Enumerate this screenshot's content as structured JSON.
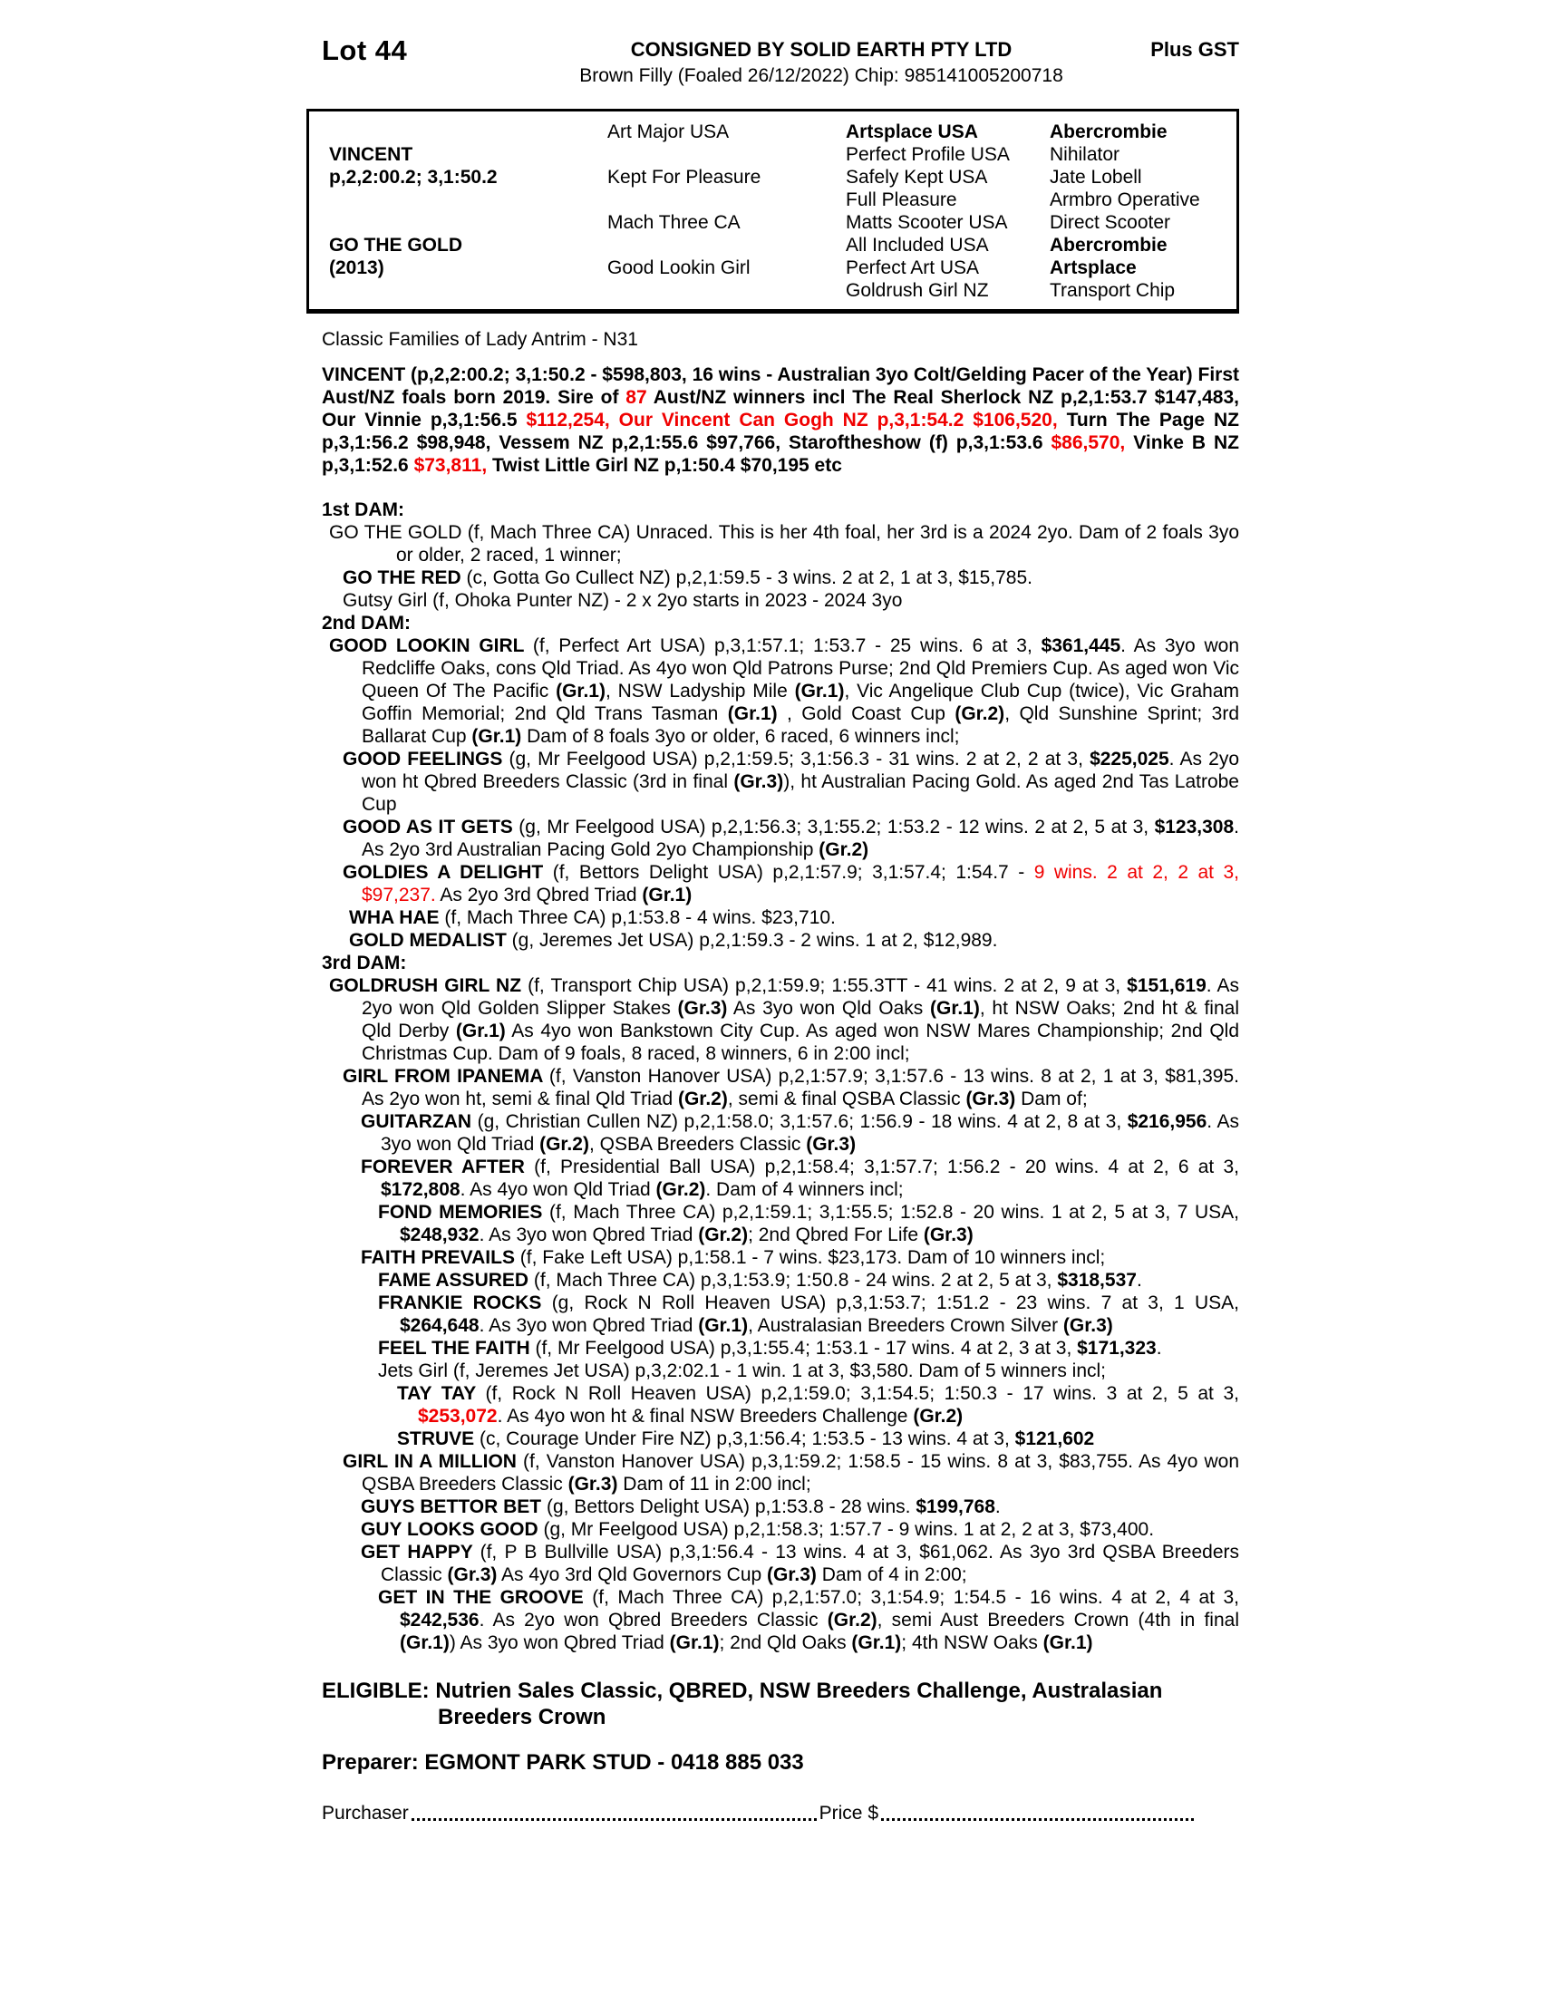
{
  "colors": {
    "red": "#f00000",
    "text": "#000000",
    "background": "#ffffff"
  },
  "header": {
    "lot": "Lot 44",
    "consignor": "CONSIGNED BY SOLID EARTH PTY LTD",
    "gst": "Plus GST",
    "description": "Brown Filly (Foaled 26/12/2022) Chip: 985141005200718"
  },
  "pedigree": {
    "col1": [
      {
        "text": "VINCENT",
        "bold": true,
        "row": 2
      },
      {
        "text": "p,2,2:00.2; 3,1:50.2",
        "bold": true,
        "row": 3
      },
      {
        "text": "GO THE GOLD",
        "bold": true,
        "row": 6
      },
      {
        "text": "(2013)",
        "bold": true,
        "row": 7
      }
    ],
    "col2": [
      {
        "text": "Art Major USA",
        "row": 1
      },
      {
        "text": "Kept For Pleasure",
        "row": 3
      },
      {
        "text": "Mach Three CA",
        "row": 5
      },
      {
        "text": "Good Lookin Girl",
        "row": 7
      }
    ],
    "col3": [
      {
        "text": "Artsplace USA",
        "bold": true,
        "row": 1
      },
      {
        "text": "Perfect Profile USA",
        "row": 2
      },
      {
        "text": "Safely Kept USA",
        "row": 3
      },
      {
        "text": "Full Pleasure",
        "row": 4
      },
      {
        "text": "Matts Scooter USA",
        "row": 5
      },
      {
        "text": "All Included USA",
        "row": 6
      },
      {
        "text": "Perfect Art USA",
        "row": 7
      },
      {
        "text": "Goldrush Girl NZ",
        "row": 8
      }
    ],
    "col4": [
      {
        "text": "Abercrombie",
        "bold": true,
        "row": 1
      },
      {
        "text": "Nihilator",
        "row": 2
      },
      {
        "text": "Jate Lobell",
        "row": 3
      },
      {
        "text": "Armbro Operative",
        "row": 4
      },
      {
        "text": "Direct Scooter",
        "row": 5
      },
      {
        "text": "Abercrombie",
        "bold": true,
        "row": 6
      },
      {
        "text": "Artsplace",
        "bold": true,
        "row": 7
      },
      {
        "text": "Transport Chip",
        "row": 8
      }
    ]
  },
  "family_note": "Classic Families of Lady Antrim - N31",
  "sire_paragraph": {
    "segments": [
      {
        "t": "VINCENT (p,2,2:00.2; 3,1:50.2 - $598,803, 16 wins - Australian 3yo Colt/Gelding Pacer of the Year) First Aust/NZ foals born 2019. Sire of ",
        "b": true
      },
      {
        "t": "87",
        "b": true,
        "r": true
      },
      {
        "t": " Aust/NZ winners incl The Real Sherlock NZ p,2,1:53.7 $147,483, Our Vinnie p,3,1:56.5 ",
        "b": true
      },
      {
        "t": "$112,254,",
        "b": true,
        "r": true
      },
      {
        "t": " ",
        "b": true
      },
      {
        "t": "Our Vincent Can Gogh NZ p,3,1:54.2 $106,520,",
        "b": true,
        "r": true
      },
      {
        "t": " Turn The Page NZ p,3,1:56.2 $98,948, Vessem NZ p,2,1:55.6 $97,766, Staroftheshow (f) p,3,1:53.6 ",
        "b": true
      },
      {
        "t": "$86,570,",
        "b": true,
        "r": true
      },
      {
        "t": " Vinke B NZ p,3,1:52.6 ",
        "b": true
      },
      {
        "t": "$73,811,",
        "b": true,
        "r": true
      },
      {
        "t": " Twist Little Girl NZ p,1:50.4 $70,195 etc",
        "b": true
      }
    ]
  },
  "sections": [
    {
      "heading": "1st DAM:",
      "entries": [
        {
          "level": "lv1",
          "segments": [
            {
              "t": "GO THE GOLD (f, Mach Three CA) Unraced. This is her 4th foal, her 3rd is a 2024 2yo. Dam of 2 foals 3yo or older, 2 raced, 1 winner;"
            }
          ]
        },
        {
          "level": "lv2",
          "segments": [
            {
              "t": "GO THE RED ",
              "b": true
            },
            {
              "t": "(c, Gotta Go Cullect NZ) p,2,1:59.5 - 3 wins. 2 at 2, 1 at 3, $15,785."
            }
          ]
        },
        {
          "level": "lv2",
          "segments": [
            {
              "t": "Gutsy Girl (f, Ohoka Punter NZ) - 2 x 2yo starts in 2023 - 2024 3yo"
            }
          ]
        }
      ]
    },
    {
      "heading": "2nd DAM:",
      "entries": [
        {
          "level": "lv1b",
          "segments": [
            {
              "t": "GOOD LOOKIN GIRL ",
              "b": true
            },
            {
              "t": "(f, Perfect Art USA) p,3,1:57.1; 1:53.7 - 25 wins. 6 at 3, "
            },
            {
              "t": "$361,445",
              "b": true
            },
            {
              "t": ". As 3yo won Redcliffe Oaks, cons Qld Triad. As 4yo won Qld Patrons Purse; 2nd Qld Premiers Cup. As aged won Vic Queen Of The Pacific "
            },
            {
              "t": "(Gr.1)",
              "b": true
            },
            {
              "t": ", NSW Ladyship Mile "
            },
            {
              "t": "(Gr.1)",
              "b": true
            },
            {
              "t": ", Vic Angelique Club Cup (twice), Vic Graham Goffin Memorial; 2nd Qld Trans Tasman "
            },
            {
              "t": "(Gr.1)",
              "b": true
            },
            {
              "t": " , Gold Coast Cup "
            },
            {
              "t": "(Gr.2)",
              "b": true
            },
            {
              "t": ", Qld Sunshine Sprint; 3rd Ballarat Cup "
            },
            {
              "t": "(Gr.1)",
              "b": true
            },
            {
              "t": " Dam of 8 foals 3yo or older, 6 raced, 6 winners incl;"
            }
          ]
        },
        {
          "level": "lv2",
          "segments": [
            {
              "t": "GOOD FEELINGS ",
              "b": true
            },
            {
              "t": "(g, Mr Feelgood USA) p,2,1:59.5; 3,1:56.3 - 31 wins. 2 at 2, 2 at 3, "
            },
            {
              "t": "$225,025",
              "b": true
            },
            {
              "t": ". As 2yo won ht Qbred Breeders Classic (3rd in final "
            },
            {
              "t": "(Gr.3)",
              "b": true
            },
            {
              "t": "), ht Australian Pacing Gold. As aged 2nd Tas Latrobe Cup"
            }
          ]
        },
        {
          "level": "lv2",
          "segments": [
            {
              "t": "GOOD AS IT GETS ",
              "b": true
            },
            {
              "t": "(g, Mr Feelgood USA) p,2,1:56.3; 3,1:55.2; 1:53.2 - 12 wins. 2 at 2, 5 at 3, "
            },
            {
              "t": "$123,308",
              "b": true
            },
            {
              "t": ". As 2yo 3rd Australian Pacing Gold 2yo Championship "
            },
            {
              "t": "(Gr.2)",
              "b": true
            }
          ]
        },
        {
          "level": "lv2",
          "segments": [
            {
              "t": "GOLDIES A DELIGHT ",
              "b": true
            },
            {
              "t": "(f, Bettors Delight USA) p,2,1:57.9; 3,1:57.4; 1:54.7 - "
            },
            {
              "t": "9 wins. 2 at 2, 2 at 3, $97,237.",
              "r": true
            },
            {
              "t": " As 2yo 3rd Qbred Triad "
            },
            {
              "t": "(Gr.1)",
              "b": true
            }
          ]
        },
        {
          "level": "lv2b",
          "segments": [
            {
              "t": "WHA HAE ",
              "b": true
            },
            {
              "t": "(f, Mach Three CA) p,1:53.8 - 4 wins. $23,710."
            }
          ]
        },
        {
          "level": "lv2b",
          "segments": [
            {
              "t": "GOLD MEDALIST ",
              "b": true
            },
            {
              "t": "(g, Jeremes Jet USA) p,2,1:59.3 - 2 wins. 1 at 2, $12,989."
            }
          ]
        }
      ]
    },
    {
      "heading": "3rd DAM:",
      "entries": [
        {
          "level": "lv1b",
          "segments": [
            {
              "t": "GOLDRUSH GIRL NZ ",
              "b": true
            },
            {
              "t": "(f, Transport Chip USA) p,2,1:59.9; 1:55.3TT - 41 wins. 2 at 2, 9 at 3, "
            },
            {
              "t": "$151,619",
              "b": true
            },
            {
              "t": ". As 2yo won Qld Golden Slipper Stakes "
            },
            {
              "t": "(Gr.3)",
              "b": true
            },
            {
              "t": " As 3yo won Qld Oaks "
            },
            {
              "t": "(Gr.1)",
              "b": true
            },
            {
              "t": ", ht NSW Oaks; 2nd ht & final Qld Derby "
            },
            {
              "t": "(Gr.1)",
              "b": true
            },
            {
              "t": " As 4yo won Bankstown City Cup. As aged won NSW Mares Championship; 2nd Qld Christmas Cup. Dam of 9 foals, 8 raced, 8 winners, 6 in 2:00 incl;"
            }
          ]
        },
        {
          "level": "lv2",
          "segments": [
            {
              "t": "GIRL FROM IPANEMA ",
              "b": true
            },
            {
              "t": "(f, Vanston Hanover USA) p,2,1:57.9; 3,1:57.6 - 13 wins. 8 at 2, 1 at 3, $81,395. As 2yo won ht, semi & final Qld Triad "
            },
            {
              "t": "(Gr.2)",
              "b": true
            },
            {
              "t": ", semi & final QSBA Classic "
            },
            {
              "t": "(Gr.3)",
              "b": true
            },
            {
              "t": " Dam of;"
            }
          ]
        },
        {
          "level": "lv3",
          "segments": [
            {
              "t": "GUITARZAN ",
              "b": true
            },
            {
              "t": "(g, Christian Cullen NZ) p,2,1:58.0; 3,1:57.6; 1:56.9 - 18 wins. 4 at 2, 8 at 3, "
            },
            {
              "t": "$216,956",
              "b": true
            },
            {
              "t": ". As 3yo won Qld Triad "
            },
            {
              "t": "(Gr.2)",
              "b": true
            },
            {
              "t": ", QSBA Breeders Classic "
            },
            {
              "t": "(Gr.3)",
              "b": true
            }
          ]
        },
        {
          "level": "lv3",
          "segments": [
            {
              "t": "FOREVER AFTER ",
              "b": true
            },
            {
              "t": "(f, Presidential Ball USA) p,2,1:58.4; 3,1:57.7; 1:56.2 - 20 wins. 4 at 2, 6 at 3, "
            },
            {
              "t": "$172,808",
              "b": true
            },
            {
              "t": ". As 4yo won Qld Triad "
            },
            {
              "t": "(Gr.2)",
              "b": true
            },
            {
              "t": ". Dam of 4 winners incl;"
            }
          ]
        },
        {
          "level": "lv4",
          "segments": [
            {
              "t": "FOND MEMORIES ",
              "b": true
            },
            {
              "t": "(f, Mach Three CA) p,2,1:59.1; 3,1:55.5; 1:52.8 - 20 wins. 1 at 2, 5 at 3, 7 USA, "
            },
            {
              "t": "$248,932",
              "b": true
            },
            {
              "t": ". As 3yo won Qbred Triad "
            },
            {
              "t": "(Gr.2)",
              "b": true
            },
            {
              "t": "; 2nd Qbred For Life "
            },
            {
              "t": "(Gr.3)",
              "b": true
            }
          ]
        },
        {
          "level": "lv3",
          "segments": [
            {
              "t": "FAITH PREVAILS ",
              "b": true
            },
            {
              "t": "(f, Fake Left USA) p,1:58.1 - 7 wins. $23,173. Dam of 10 winners incl;"
            }
          ]
        },
        {
          "level": "lv4",
          "segments": [
            {
              "t": "FAME ASSURED ",
              "b": true
            },
            {
              "t": "(f, Mach Three CA) p,3,1:53.9; 1:50.8 - 24 wins. 2 at 2, 5 at 3, "
            },
            {
              "t": "$318,537",
              "b": true
            },
            {
              "t": "."
            }
          ]
        },
        {
          "level": "lv4",
          "segments": [
            {
              "t": "FRANKIE ROCKS ",
              "b": true
            },
            {
              "t": "(g, Rock N Roll Heaven USA) p,3,1:53.7; 1:51.2 - 23 wins. 7 at 3, 1 USA, "
            },
            {
              "t": "$264,648",
              "b": true
            },
            {
              "t": ". As 3yo won Qbred Triad "
            },
            {
              "t": "(Gr.1)",
              "b": true
            },
            {
              "t": ", Australasian Breeders Crown Silver "
            },
            {
              "t": "(Gr.3)",
              "b": true
            }
          ]
        },
        {
          "level": "lv4",
          "segments": [
            {
              "t": "FEEL THE FAITH ",
              "b": true
            },
            {
              "t": "(f, Mr Feelgood USA) p,3,1:55.4; 1:53.1 - 17 wins. 4 at 2, 3 at 3, "
            },
            {
              "t": "$171,323",
              "b": true
            },
            {
              "t": "."
            }
          ]
        },
        {
          "level": "lv4",
          "segments": [
            {
              "t": "Jets Girl (f, Jeremes Jet USA) p,3,2:02.1 - 1 win. 1 at 3, $3,580. Dam of 5 winners incl;"
            }
          ]
        },
        {
          "level": "lv5",
          "segments": [
            {
              "t": "TAY TAY ",
              "b": true
            },
            {
              "t": "(f, Rock N Roll Heaven USA) p,2,1:59.0; 3,1:54.5; 1:50.3 - 17 wins. 3 at 2, 5 at 3, "
            },
            {
              "t": "$253,072",
              "b": true,
              "r": true
            },
            {
              "t": ". As 4yo won ht & final NSW Breeders Challenge "
            },
            {
              "t": "(Gr.2)",
              "b": true
            }
          ]
        },
        {
          "level": "lv5",
          "segments": [
            {
              "t": "STRUVE ",
              "b": true
            },
            {
              "t": "(c, Courage Under Fire NZ) p,3,1:56.4; 1:53.5 - 13 wins. 4 at 3, "
            },
            {
              "t": "$121,602",
              "b": true
            }
          ]
        },
        {
          "level": "lv2",
          "segments": [
            {
              "t": "GIRL IN A MILLION ",
              "b": true
            },
            {
              "t": "(f, Vanston Hanover USA) p,3,1:59.2; 1:58.5 - 15 wins. 8 at 3, $83,755. As 4yo won QSBA Breeders Classic "
            },
            {
              "t": "(Gr.3)",
              "b": true
            },
            {
              "t": " Dam of 11 in 2:00 incl;"
            }
          ]
        },
        {
          "level": "lv3",
          "segments": [
            {
              "t": "GUYS BETTOR BET ",
              "b": true
            },
            {
              "t": "(g, Bettors Delight USA) p,1:53.8 - 28 wins. "
            },
            {
              "t": "$199,768",
              "b": true
            },
            {
              "t": "."
            }
          ]
        },
        {
          "level": "lv3",
          "segments": [
            {
              "t": "GUY LOOKS GOOD ",
              "b": true
            },
            {
              "t": "(g, Mr Feelgood USA) p,2,1:58.3; 1:57.7 - 9 wins. 1 at 2, 2 at 3, $73,400."
            }
          ]
        },
        {
          "level": "lv3",
          "segments": [
            {
              "t": "GET HAPPY ",
              "b": true
            },
            {
              "t": "(f, P B Bullville USA) p,3,1:56.4 - 13 wins. 4 at 3, $61,062. As 3yo 3rd QSBA Breeders Classic "
            },
            {
              "t": "(Gr.3)",
              "b": true
            },
            {
              "t": " As 4yo 3rd Qld Governors Cup "
            },
            {
              "t": "(Gr.3)",
              "b": true
            },
            {
              "t": " Dam of 4 in 2:00;"
            }
          ]
        },
        {
          "level": "lv4",
          "segments": [
            {
              "t": "GET IN THE GROOVE ",
              "b": true
            },
            {
              "t": "(f, Mach Three CA) p,2,1:57.0; 3,1:54.9; 1:54.5 - 16 wins. 4 at 2, 4 at 3, "
            },
            {
              "t": "$242,536",
              "b": true
            },
            {
              "t": ". As 2yo won Qbred Breeders Classic "
            },
            {
              "t": "(Gr.2)",
              "b": true
            },
            {
              "t": ", semi Aust Breeders Crown (4th in final "
            },
            {
              "t": "(Gr.1)",
              "b": true
            },
            {
              "t": ") As 3yo won Qbred Triad "
            },
            {
              "t": "(Gr.1)",
              "b": true
            },
            {
              "t": "; 2nd Qld Oaks "
            },
            {
              "t": "(Gr.1)",
              "b": true
            },
            {
              "t": "; 4th NSW Oaks "
            },
            {
              "t": "(Gr.1)",
              "b": true
            }
          ]
        }
      ]
    }
  ],
  "footer": {
    "eligible_label": "ELIGIBLE:",
    "eligible_text": "Nutrien Sales Classic, QBRED, NSW Breeders Challenge, Australasian Breeders Crown",
    "preparer": "Preparer: EGMONT PARK STUD - 0418 885 033",
    "purchaser_label": "Purchaser",
    "price_label": "Price $"
  }
}
